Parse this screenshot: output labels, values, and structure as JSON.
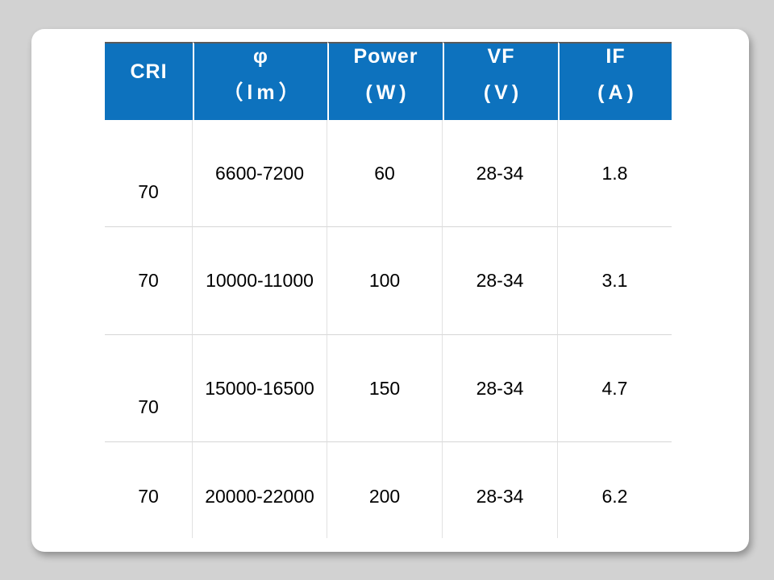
{
  "table": {
    "header": [
      {
        "line1": "CRI",
        "line2": ""
      },
      {
        "line1": "φ",
        "line2": "（lm）"
      },
      {
        "line1": "Power",
        "line2": "(W)"
      },
      {
        "line1": "VF",
        "line2": "(V)"
      },
      {
        "line1": "IF",
        "line2": "(A)"
      }
    ],
    "rows": [
      [
        "70",
        "6600-7200",
        "60",
        "28-34",
        "1.8"
      ],
      [
        "70",
        "10000-11000",
        "100",
        "28-34",
        "3.1"
      ],
      [
        "70",
        "15000-16500",
        "150",
        "28-34",
        "4.7"
      ],
      [
        "70",
        "20000-22000",
        "200",
        "28-34",
        "6.2"
      ]
    ]
  },
  "colors": {
    "header_bg": "#0d72be",
    "header_text": "#ffffff",
    "body_text": "#000000",
    "page_bg": "#d2d2d2",
    "card_bg": "#ffffff",
    "header_top_border": "#5a5a5a",
    "grid_line": "#d6d6d6"
  }
}
